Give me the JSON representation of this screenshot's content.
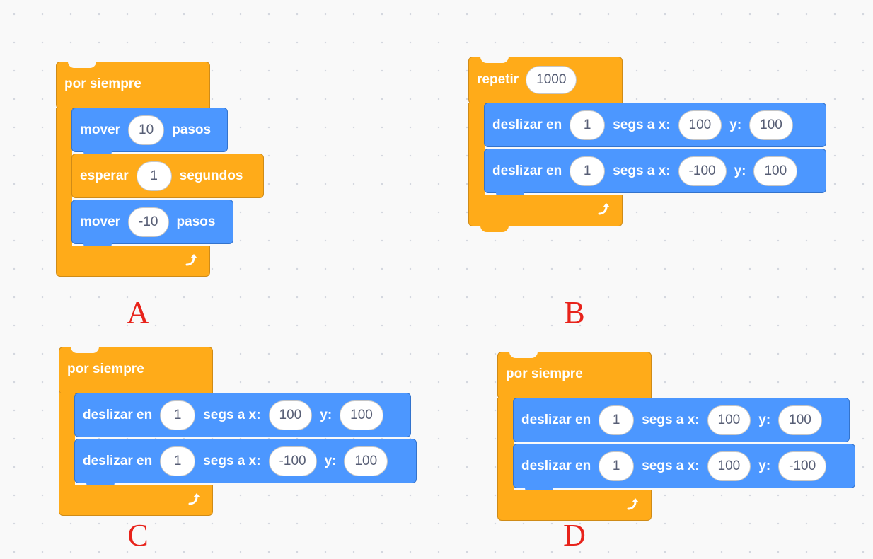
{
  "options": [
    {
      "letter": "A",
      "loop": {
        "keyword": "por siempre"
      },
      "blocks": [
        {
          "category": "motion",
          "parts": [
            "mover",
            "#10",
            "pasos"
          ]
        },
        {
          "category": "control",
          "parts": [
            "esperar",
            "#1",
            "segundos"
          ]
        },
        {
          "category": "motion",
          "parts": [
            "mover",
            "#-10",
            "pasos"
          ]
        }
      ]
    },
    {
      "letter": "B",
      "loop": {
        "keyword": "repetir",
        "count": "1000"
      },
      "blocks": [
        {
          "category": "motion",
          "parts": [
            "deslizar en",
            "#1",
            "segs a x:",
            "#100",
            "y:",
            "#100"
          ]
        },
        {
          "category": "motion",
          "parts": [
            "deslizar en",
            "#1",
            "segs a x:",
            "#-100",
            "y:",
            "#100"
          ]
        }
      ]
    },
    {
      "letter": "C",
      "loop": {
        "keyword": "por siempre"
      },
      "blocks": [
        {
          "category": "motion",
          "parts": [
            "deslizar en",
            "#1",
            "segs a x:",
            "#100",
            "y:",
            "#100"
          ]
        },
        {
          "category": "motion",
          "parts": [
            "deslizar en",
            "#1",
            "segs a x:",
            "#-100",
            "y:",
            "#100"
          ]
        }
      ]
    },
    {
      "letter": "D",
      "loop": {
        "keyword": "por siempre"
      },
      "blocks": [
        {
          "category": "motion",
          "parts": [
            "deslizar en",
            "#1",
            "segs a x:",
            "#100",
            "y:",
            "#100"
          ]
        },
        {
          "category": "motion",
          "parts": [
            "deslizar en",
            "#1",
            "segs a x:",
            "#100",
            "y:",
            "#-100"
          ]
        }
      ]
    }
  ],
  "colors": {
    "control": "#ffab19",
    "motion": "#4c97ff",
    "letter": "#e8231b",
    "canvas": "#f9f9f9"
  },
  "icons": {
    "loop_end": "loop-arrow-icon"
  }
}
